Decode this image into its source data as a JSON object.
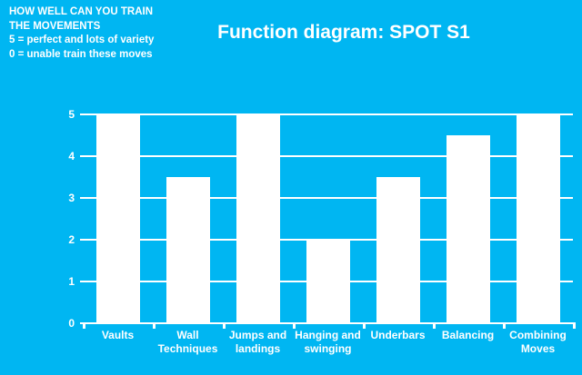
{
  "slide": {
    "background_color": "#00b6f2",
    "text_color": "#ffffff",
    "note_lines": [
      "HOW WELL CAN YOU TRAIN",
      "THE MOVEMENTS",
      "5 = perfect and lots of variety",
      "0 = unable train these moves"
    ]
  },
  "chart_data": {
    "type": "bar",
    "title": "Function diagram: SPOT S1",
    "categories": [
      "Vaults",
      "Wall Techniques",
      "Jumps and landings",
      "Hanging and swinging",
      "Underbars",
      "Balancing",
      "Combining Moves"
    ],
    "values": [
      5,
      3.5,
      5,
      2,
      3.5,
      4.5,
      5
    ],
    "xlabel": "",
    "ylabel": "",
    "ylim": [
      0,
      5
    ],
    "yticks": [
      0,
      1,
      2,
      3,
      4,
      5
    ],
    "grid": true,
    "legend": false,
    "bar_color": "#ffffff",
    "axis_color": "#ffffff",
    "label_color": "#ffffff"
  }
}
